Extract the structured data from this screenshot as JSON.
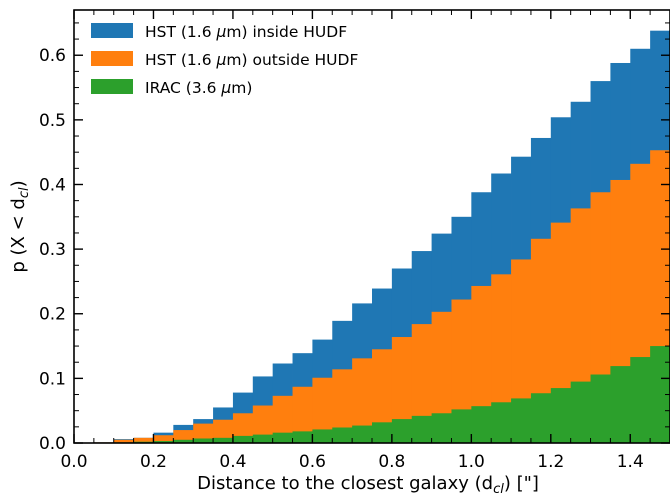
{
  "chart_data": {
    "type": "bar",
    "subtype": "stacked-step-histogram",
    "xlabel_main": "Distance to the closest galaxy (d",
    "xlabel_sub": "cl",
    "xlabel_end": ") [\"]",
    "ylabel_main": "p (X < d",
    "ylabel_sub": "cl",
    "ylabel_end": ")",
    "xlim": [
      0.0,
      1.5
    ],
    "ylim": [
      0.0,
      0.67
    ],
    "xticks": [
      "0.0",
      "0.2",
      "0.4",
      "0.6",
      "0.8",
      "1.0",
      "1.2",
      "1.4"
    ],
    "yticks": [
      "0.0",
      "0.1",
      "0.2",
      "0.3",
      "0.4",
      "0.5",
      "0.6"
    ],
    "bin_width": 0.05,
    "bin_starts": [
      0.05,
      0.1,
      0.15,
      0.2,
      0.25,
      0.3,
      0.35,
      0.4,
      0.45,
      0.5,
      0.55,
      0.6,
      0.65,
      0.7,
      0.75,
      0.8,
      0.85,
      0.9,
      0.95,
      1.0,
      1.05,
      1.1,
      1.15,
      1.2,
      1.25,
      1.3,
      1.35,
      1.4,
      1.45
    ],
    "legend_position": "top-left",
    "grid": false,
    "series": [
      {
        "name": "HST (1.6 μm) inside HUDF",
        "legend_prefix": "HST (1.6 ",
        "legend_mu": "μ",
        "legend_suffix": "m) inside HUDF",
        "color": "#1f77b4",
        "values": [
          0.001,
          0.006,
          0.008,
          0.016,
          0.028,
          0.037,
          0.055,
          0.078,
          0.103,
          0.123,
          0.139,
          0.16,
          0.189,
          0.216,
          0.239,
          0.27,
          0.297,
          0.324,
          0.35,
          0.388,
          0.417,
          0.443,
          0.472,
          0.504,
          0.528,
          0.56,
          0.588,
          0.61,
          0.638
        ]
      },
      {
        "name": "HST (1.6 μm) outside HUDF",
        "legend_prefix": "HST (1.6 ",
        "legend_mu": "μ",
        "legend_suffix": "m) outside HUDF",
        "color": "#ff7f0e",
        "values": [
          0.001,
          0.005,
          0.008,
          0.012,
          0.02,
          0.03,
          0.036,
          0.046,
          0.058,
          0.073,
          0.087,
          0.101,
          0.114,
          0.131,
          0.145,
          0.164,
          0.184,
          0.203,
          0.222,
          0.243,
          0.261,
          0.284,
          0.316,
          0.341,
          0.363,
          0.388,
          0.407,
          0.432,
          0.453
        ]
      },
      {
        "name": "IRAC (3.6 μm)",
        "legend_prefix": "IRAC (3.6 ",
        "legend_mu": "μ",
        "legend_suffix": "m)",
        "color": "#2ca02c",
        "values": [
          0.0,
          0.001,
          0.002,
          0.003,
          0.005,
          0.007,
          0.008,
          0.011,
          0.013,
          0.016,
          0.018,
          0.021,
          0.024,
          0.027,
          0.032,
          0.037,
          0.042,
          0.046,
          0.052,
          0.057,
          0.063,
          0.069,
          0.077,
          0.085,
          0.095,
          0.106,
          0.119,
          0.133,
          0.15
        ]
      }
    ]
  }
}
